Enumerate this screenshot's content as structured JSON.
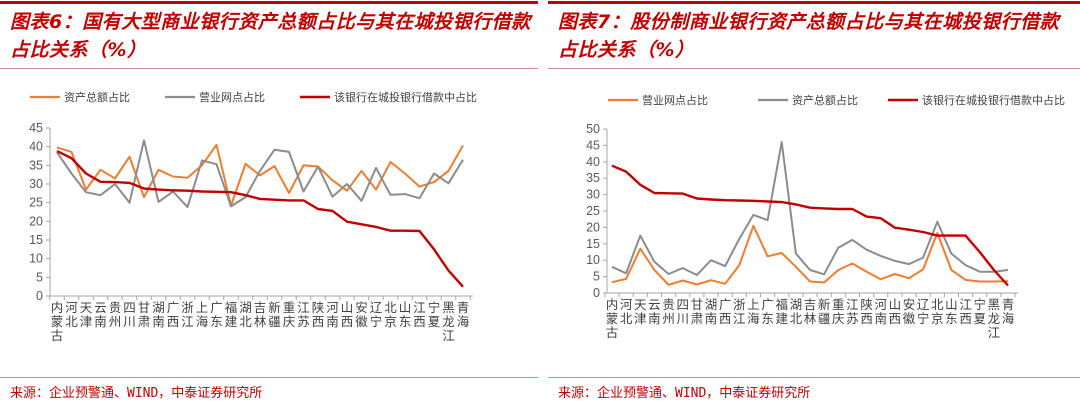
{
  "source": "来源：企业预警通、WIND，中泰证券研究所",
  "colors": {
    "orange": "#ed7d31",
    "gray": "#8c8c8c",
    "red": "#c00000"
  },
  "chart_data": [
    {
      "type": "line",
      "title": "图表6：国有大型商业银行资产总额占比与其在城投银行借款占比关系（%）",
      "categories": [
        "内蒙古",
        "河北",
        "天津",
        "云南",
        "贵州",
        "四川",
        "甘肃",
        "湖南",
        "广西",
        "浙江",
        "上海",
        "广东",
        "福建",
        "湖北",
        "吉林",
        "新疆",
        "重庆",
        "江苏",
        "陕西",
        "河南",
        "山西",
        "安徽",
        "辽宁",
        "北京",
        "山东",
        "江西",
        "宁夏",
        "黑龙江",
        "青海"
      ],
      "ylim": [
        0,
        45
      ],
      "yticks": [
        0,
        5,
        10,
        15,
        20,
        25,
        30,
        35,
        40,
        45
      ],
      "grid": false,
      "legend": "top",
      "series": [
        {
          "name": "资产总额占比",
          "color": "#ed7d31",
          "values": [
            39.8,
            38.6,
            28.5,
            33.8,
            31.5,
            37.3,
            26.5,
            33.8,
            32,
            31.7,
            35,
            40.5,
            24.2,
            35.4,
            32.3,
            34.8,
            27.6,
            35,
            34.7,
            31,
            28.2,
            33.5,
            28.5,
            35.9,
            32.8,
            29.3,
            30.5,
            33.5,
            40.3
          ]
        },
        {
          "name": "营业网点占比",
          "color": "#8c8c8c",
          "values": [
            38.5,
            32.8,
            27.8,
            27,
            30,
            25,
            41.7,
            25.2,
            28,
            23.8,
            36.3,
            35.3,
            24,
            26.5,
            33.5,
            39.2,
            38.6,
            28,
            34.7,
            26.6,
            30,
            25.5,
            34.3,
            27.1,
            27.3,
            26.2,
            32.8,
            30.2,
            36.5
          ]
        },
        {
          "name": "该银行在城投银行借款中占比",
          "color": "#c00000",
          "values": [
            38.8,
            36.9,
            32.8,
            30.6,
            30.5,
            30.3,
            28.8,
            28.5,
            28.3,
            28.2,
            28.0,
            27.9,
            27.8,
            27,
            26,
            25.8,
            25.6,
            25.6,
            23.3,
            22.8,
            19.9,
            19.2,
            18.5,
            17.5,
            17.5,
            17.4,
            12.5,
            6.8,
            2.5
          ]
        }
      ]
    },
    {
      "type": "line",
      "title": "图表7：股份制商业银行资产总额占比与其在城投银行借款占比关系（%）",
      "categories": [
        "内蒙古",
        "河北",
        "天津",
        "云南",
        "贵州",
        "四川",
        "甘肃",
        "湖南",
        "广西",
        "浙江",
        "上海",
        "广东",
        "福建",
        "湖北",
        "吉林",
        "新疆",
        "重庆",
        "江苏",
        "陕西",
        "河南",
        "山西",
        "安徽",
        "辽宁",
        "北京",
        "山东",
        "江西",
        "宁夏",
        "黑龙江",
        "青海"
      ],
      "ylim": [
        0,
        50
      ],
      "yticks": [
        0,
        5,
        10,
        15,
        20,
        25,
        30,
        35,
        40,
        45,
        50
      ],
      "grid": false,
      "legend": "top",
      "series": [
        {
          "name": "营业网点占比",
          "color": "#ed7d31",
          "values": [
            3.3,
            4.3,
            13.5,
            7,
            2.5,
            3.8,
            2.6,
            3.9,
            2.8,
            8.5,
            20.5,
            11.2,
            12.2,
            8,
            3.5,
            3.2,
            7,
            9,
            6.5,
            4.2,
            5.8,
            4.5,
            7.2,
            18.3,
            7,
            4,
            3.5,
            3.5,
            3.6
          ]
        },
        {
          "name": "资产总额占比",
          "color": "#8c8c8c",
          "values": [
            8,
            6,
            17.5,
            9.5,
            5.8,
            7.6,
            5.5,
            10,
            8.2,
            16.5,
            23.8,
            22.2,
            46,
            12,
            7,
            5.7,
            13.8,
            16.2,
            13.2,
            11.3,
            9.8,
            8.8,
            10.8,
            21.7,
            12,
            8.5,
            6.5,
            6.5,
            7
          ]
        },
        {
          "name": "该银行在城投银行借款中占比",
          "color": "#c00000",
          "values": [
            38.8,
            37,
            33,
            30.5,
            30.4,
            30.3,
            28.8,
            28.5,
            28.3,
            28.2,
            28.1,
            27.9,
            27.7,
            27,
            26,
            25.8,
            25.6,
            25.6,
            23.3,
            22.8,
            19.9,
            19.3,
            18.6,
            17.5,
            17.5,
            17.5,
            12.5,
            7,
            2.3
          ]
        }
      ]
    }
  ]
}
